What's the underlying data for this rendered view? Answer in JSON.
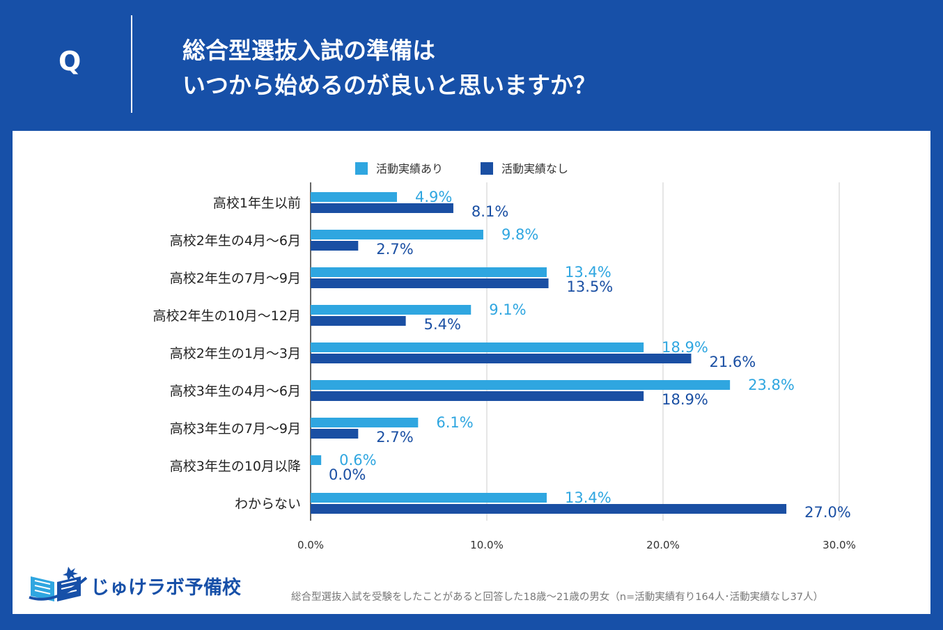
{
  "header": {
    "q_label": "Q",
    "title_line1": "総合型選抜入試の準備は",
    "title_line2": "いつから始めるのが良いと思いますか？"
  },
  "brand": {
    "name": "じゅけラボ予備校"
  },
  "footnote": "総合型選抜入試を受験をしたことがあると回答した18歳～21歳の男女（n=活動実績有り164人･活動実績なし37人）",
  "colors": {
    "background": "#1750a8",
    "series_light": "#2fa6e0",
    "series_dark": "#1a4fa3",
    "gridline": "#cccccc",
    "text": "#333333"
  },
  "chart_data": {
    "type": "bar",
    "orientation": "horizontal",
    "categories": [
      "高校1年生以前",
      "高校2年生の4月～6月",
      "高校2年生の7月～9月",
      "高校2年生の10月～12月",
      "高校2年生の1月～3月",
      "高校3年生の4月～6月",
      "高校3年生の7月～9月",
      "高校3年生の10月以降",
      "わからない"
    ],
    "series": [
      {
        "name": "活動実績あり",
        "values": [
          4.9,
          9.8,
          13.4,
          9.1,
          18.9,
          23.8,
          6.1,
          0.6,
          13.4
        ],
        "labels": [
          "4.9%",
          "9.8%",
          "13.4%",
          "9.1%",
          "18.9%",
          "23.8%",
          "6.1%",
          "0.6%",
          "13.4%"
        ]
      },
      {
        "name": "活動実績なし",
        "values": [
          8.1,
          2.7,
          13.5,
          5.4,
          21.6,
          18.9,
          2.7,
          0.0,
          27.0
        ],
        "labels": [
          "8.1%",
          "2.7%",
          "13.5%",
          "5.4%",
          "21.6%",
          "18.9%",
          "2.7%",
          "0.0%",
          "27.0%"
        ]
      }
    ],
    "xlim": [
      0,
      30
    ],
    "xticks": [
      0,
      10,
      20,
      30
    ],
    "xtick_labels": [
      "0.0%",
      "10.0%",
      "20.0%",
      "30.0%"
    ],
    "legend_position": "top-center",
    "grid": true
  }
}
